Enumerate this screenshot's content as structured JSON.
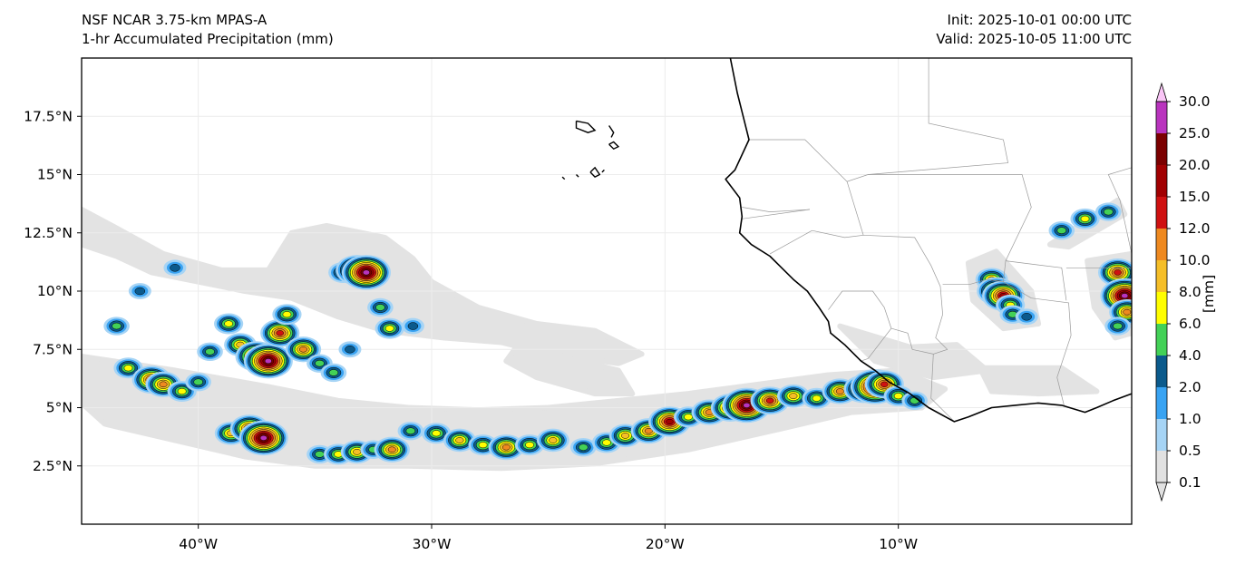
{
  "header": {
    "model": "NSF NCAR 3.75-km MPAS-A",
    "field": "1-hr Accumulated Precipitation (mm)",
    "init": "Init: 2025-10-01 00:00 UTC",
    "valid": "Valid: 2025-10-05 11:00 UTC"
  },
  "map": {
    "lon_range": [
      -45,
      0
    ],
    "lat_range": [
      0,
      20
    ],
    "lat_ticks": [
      {
        "value": 2.5,
        "label": "2.5°N"
      },
      {
        "value": 5,
        "label": "5°N"
      },
      {
        "value": 7.5,
        "label": "7.5°N"
      },
      {
        "value": 10,
        "label": "10°N"
      },
      {
        "value": 12.5,
        "label": "12.5°N"
      },
      {
        "value": 15,
        "label": "15°N"
      },
      {
        "value": 17.5,
        "label": "17.5°N"
      }
    ],
    "lon_ticks": [
      {
        "value": -40,
        "label": "40°W"
      },
      {
        "value": -30,
        "label": "30°W"
      },
      {
        "value": -20,
        "label": "20°W"
      },
      {
        "value": -10,
        "label": "10°W"
      }
    ],
    "gridlines": true,
    "coastline": [
      [
        -17.2,
        20
      ],
      [
        -16.9,
        18.5
      ],
      [
        -16.4,
        16.5
      ],
      [
        -17.0,
        15.2
      ],
      [
        -17.4,
        14.8
      ],
      [
        -16.8,
        14.0
      ],
      [
        -16.7,
        13.2
      ],
      [
        -16.8,
        12.5
      ],
      [
        -16.3,
        12.0
      ],
      [
        -15.5,
        11.5
      ],
      [
        -15.0,
        11.0
      ],
      [
        -14.5,
        10.5
      ],
      [
        -13.9,
        10.0
      ],
      [
        -13.4,
        9.3
      ],
      [
        -13.0,
        8.7
      ],
      [
        -12.9,
        8.2
      ],
      [
        -12.3,
        7.7
      ],
      [
        -11.6,
        7.0
      ],
      [
        -11.0,
        6.6
      ],
      [
        -10.4,
        6.1
      ],
      [
        -9.5,
        5.6
      ],
      [
        -8.7,
        5.0
      ],
      [
        -7.6,
        4.4
      ],
      [
        -7.0,
        4.6
      ],
      [
        -6.0,
        5.0
      ],
      [
        -5.0,
        5.1
      ],
      [
        -4.0,
        5.2
      ],
      [
        -3.0,
        5.1
      ],
      [
        -2.0,
        4.8
      ],
      [
        -1.5,
        5.0
      ],
      [
        -0.8,
        5.3
      ],
      [
        0,
        5.6
      ]
    ],
    "islands": [
      [
        [
          -23.8,
          17.3
        ],
        [
          -23.3,
          17.2
        ],
        [
          -23.0,
          16.9
        ],
        [
          -23.3,
          16.8
        ],
        [
          -23.8,
          17.0
        ],
        [
          -23.8,
          17.3
        ]
      ],
      [
        [
          -22.4,
          17.1
        ],
        [
          -22.2,
          16.8
        ],
        [
          -22.3,
          16.6
        ]
      ],
      [
        [
          -22.4,
          16.3
        ],
        [
          -22.2,
          16.1
        ],
        [
          -22.0,
          16.2
        ],
        [
          -22.2,
          16.4
        ],
        [
          -22.4,
          16.3
        ]
      ],
      [
        [
          -23.2,
          15.1
        ],
        [
          -23.0,
          15.3
        ],
        [
          -22.8,
          15.0
        ],
        [
          -23.0,
          14.9
        ],
        [
          -23.2,
          15.1
        ]
      ],
      [
        [
          -23.8,
          15.0
        ],
        [
          -23.7,
          14.9
        ]
      ],
      [
        [
          -24.4,
          14.9
        ],
        [
          -24.3,
          14.8
        ]
      ],
      [
        [
          -22.7,
          15.1
        ],
        [
          -22.6,
          15.2
        ]
      ]
    ],
    "borders": [
      [
        [
          -8.7,
          20
        ],
        [
          -8.7,
          17.2
        ],
        [
          -5.5,
          16.5
        ],
        [
          -5.3,
          15.5
        ],
        [
          -11.3,
          15.0
        ],
        [
          -12.2,
          14.7
        ],
        [
          -14.0,
          16.5
        ],
        [
          -16.4,
          16.5
        ]
      ],
      [
        [
          -12.2,
          14.7
        ],
        [
          -11.5,
          12.4
        ],
        [
          -12.3,
          12.3
        ],
        [
          -13.7,
          12.6
        ],
        [
          -15.5,
          11.6
        ]
      ],
      [
        [
          -16.7,
          13.1
        ],
        [
          -13.8,
          13.5
        ],
        [
          -15.5,
          13.4
        ],
        [
          -16.7,
          13.6
        ]
      ],
      [
        [
          -11.5,
          12.4
        ],
        [
          -9.3,
          12.3
        ],
        [
          -8.6,
          11.1
        ],
        [
          -8.2,
          10.2
        ],
        [
          -8.1,
          9.0
        ],
        [
          -8.4,
          8.0
        ],
        [
          -7.9,
          7.5
        ],
        [
          -8.5,
          7.3
        ],
        [
          -8.6,
          5.4
        ],
        [
          -7.6,
          4.4
        ]
      ],
      [
        [
          -13.0,
          9.2
        ],
        [
          -12.4,
          10.0
        ],
        [
          -11.1,
          10.0
        ],
        [
          -10.6,
          9.3
        ],
        [
          -10.3,
          8.4
        ],
        [
          -11.3,
          7.1
        ],
        [
          -11.6,
          7.0
        ]
      ],
      [
        [
          -10.3,
          8.4
        ],
        [
          -9.6,
          8.2
        ],
        [
          -9.4,
          7.5
        ],
        [
          -8.5,
          7.3
        ]
      ],
      [
        [
          -8.1,
          10.3
        ],
        [
          -6.9,
          10.3
        ],
        [
          -6.2,
          10.5
        ],
        [
          -5.5,
          10.4
        ],
        [
          -4.3,
          9.7
        ],
        [
          -2.7,
          9.5
        ],
        [
          -2.6,
          8.1
        ],
        [
          -3.2,
          6.3
        ],
        [
          -2.9,
          5.1
        ]
      ],
      [
        [
          -11.3,
          15.0
        ],
        [
          -4.7,
          15.0
        ],
        [
          -4.3,
          13.6
        ],
        [
          -5.4,
          11.3
        ],
        [
          -5.5,
          10.4
        ]
      ],
      [
        [
          -5.4,
          11.3
        ],
        [
          -3.0,
          11.0
        ],
        [
          -2.8,
          9.6
        ]
      ],
      [
        [
          -2.8,
          11.0
        ],
        [
          0,
          11.0
        ]
      ],
      [
        [
          0,
          11.6
        ],
        [
          -0.5,
          13.9
        ],
        [
          -1.0,
          15.0
        ],
        [
          0,
          15.3
        ]
      ]
    ],
    "precip_cells": [
      [
        -43.5,
        8.5,
        4
      ],
      [
        -42.5,
        10,
        3
      ],
      [
        -41,
        11,
        2
      ],
      [
        -43,
        6.7,
        6
      ],
      [
        -42,
        6.2,
        12
      ],
      [
        -41.5,
        6,
        10
      ],
      [
        -40.7,
        5.7,
        6
      ],
      [
        -40,
        6.1,
        4
      ],
      [
        -39.5,
        7.4,
        4
      ],
      [
        -38.7,
        8.6,
        6
      ],
      [
        -38.2,
        7.7,
        8
      ],
      [
        -37.5,
        7.2,
        15
      ],
      [
        -37,
        7,
        25
      ],
      [
        -36.5,
        8.2,
        12
      ],
      [
        -36.2,
        9,
        6
      ],
      [
        -35.5,
        7.5,
        10
      ],
      [
        -34.8,
        6.9,
        4
      ],
      [
        -34.2,
        6.5,
        4
      ],
      [
        -33.5,
        7.5,
        2
      ],
      [
        -33.8,
        10.8,
        6
      ],
      [
        -33.2,
        10.9,
        15
      ],
      [
        -32.8,
        10.8,
        25
      ],
      [
        -32.2,
        9.3,
        4
      ],
      [
        -31.8,
        8.4,
        6
      ],
      [
        -30.8,
        8.5,
        2
      ],
      [
        -38.6,
        3.9,
        8
      ],
      [
        -37.8,
        4.1,
        12
      ],
      [
        -37.2,
        3.7,
        25
      ],
      [
        -34.8,
        3.0,
        4
      ],
      [
        -34,
        3.0,
        6
      ],
      [
        -33.2,
        3.1,
        8
      ],
      [
        -32.5,
        3.2,
        4
      ],
      [
        -31.7,
        3.2,
        10
      ],
      [
        -30.9,
        4.0,
        4
      ],
      [
        -29.8,
        3.9,
        6
      ],
      [
        -28.8,
        3.6,
        8
      ],
      [
        -27.8,
        3.4,
        6
      ],
      [
        -26.8,
        3.3,
        10
      ],
      [
        -25.8,
        3.4,
        6
      ],
      [
        -24.8,
        3.6,
        8
      ],
      [
        -23.5,
        3.3,
        4
      ],
      [
        -22.5,
        3.5,
        6
      ],
      [
        -21.7,
        3.8,
        8
      ],
      [
        -20.7,
        4.0,
        10
      ],
      [
        -19.8,
        4.4,
        15
      ],
      [
        -19,
        4.6,
        6
      ],
      [
        -18.1,
        4.8,
        10
      ],
      [
        -17.2,
        5.0,
        12
      ],
      [
        -16.5,
        5.1,
        25
      ],
      [
        -15.5,
        5.3,
        12
      ],
      [
        -14.5,
        5.5,
        8
      ],
      [
        -13.5,
        5.4,
        6
      ],
      [
        -12.5,
        5.7,
        10
      ],
      [
        -11.5,
        5.8,
        12
      ],
      [
        -11,
        5.9,
        25
      ],
      [
        -10.6,
        6.0,
        12
      ],
      [
        -10,
        5.5,
        6
      ],
      [
        -9.3,
        5.3,
        4
      ],
      [
        -6.0,
        10.5,
        8
      ],
      [
        -5.8,
        10.0,
        12
      ],
      [
        -5.5,
        9.8,
        15
      ],
      [
        -5.2,
        9.4,
        6
      ],
      [
        -5.1,
        9.0,
        4
      ],
      [
        -4.5,
        8.9,
        2
      ],
      [
        -3.0,
        12.6,
        4
      ],
      [
        -2.0,
        13.1,
        6
      ],
      [
        -1.0,
        13.4,
        4
      ],
      [
        -0.6,
        10.8,
        12
      ],
      [
        -0.3,
        9.8,
        25
      ],
      [
        -0.2,
        9.1,
        10
      ],
      [
        -0.6,
        8.5,
        4
      ]
    ]
  },
  "colorbar": {
    "unit_label": "[mm]",
    "levels": [
      "0.1",
      "0.5",
      "1.0",
      "2.0",
      "4.0",
      "6.0",
      "8.0",
      "10.0",
      "12.0",
      "15.0",
      "20.0",
      "25.0",
      "30.0"
    ],
    "colors": [
      "#e1e1e1",
      "#a6d4f5",
      "#39a3f2",
      "#0b5a8c",
      "#43d157",
      "#fffe00",
      "#f5be28",
      "#ee8920",
      "#cf1111",
      "#a10001",
      "#7b0000",
      "#b934be",
      "#f9c5f6"
    ]
  },
  "colors": {
    "rain_shield": "#e3e3e3",
    "coastline": "#000000",
    "border": "#9a9a9a",
    "grid": "#ececec"
  }
}
